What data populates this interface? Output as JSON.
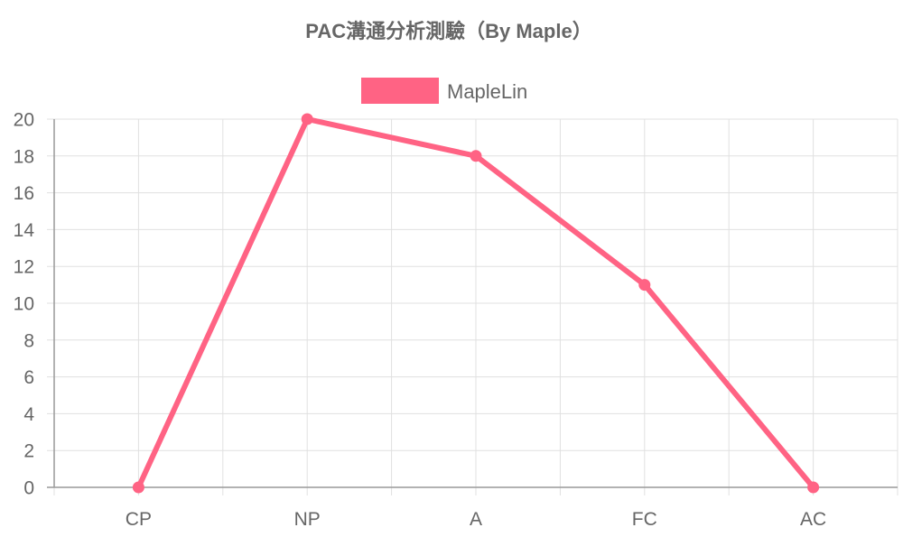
{
  "chart_data": {
    "type": "line",
    "title": "PAC溝通分析測驗（By Maple）",
    "categories": [
      "CP",
      "NP",
      "A",
      "FC",
      "AC"
    ],
    "series": [
      {
        "name": "MapleLin",
        "values": [
          0,
          20,
          18,
          11,
          0
        ],
        "color": "#ff6384"
      }
    ],
    "ylim": [
      0,
      20
    ],
    "yticks": [
      0,
      2,
      4,
      6,
      8,
      10,
      12,
      14,
      16,
      18,
      20
    ],
    "xlabel": "",
    "ylabel": "",
    "grid": true,
    "legend_position": "top-center"
  }
}
